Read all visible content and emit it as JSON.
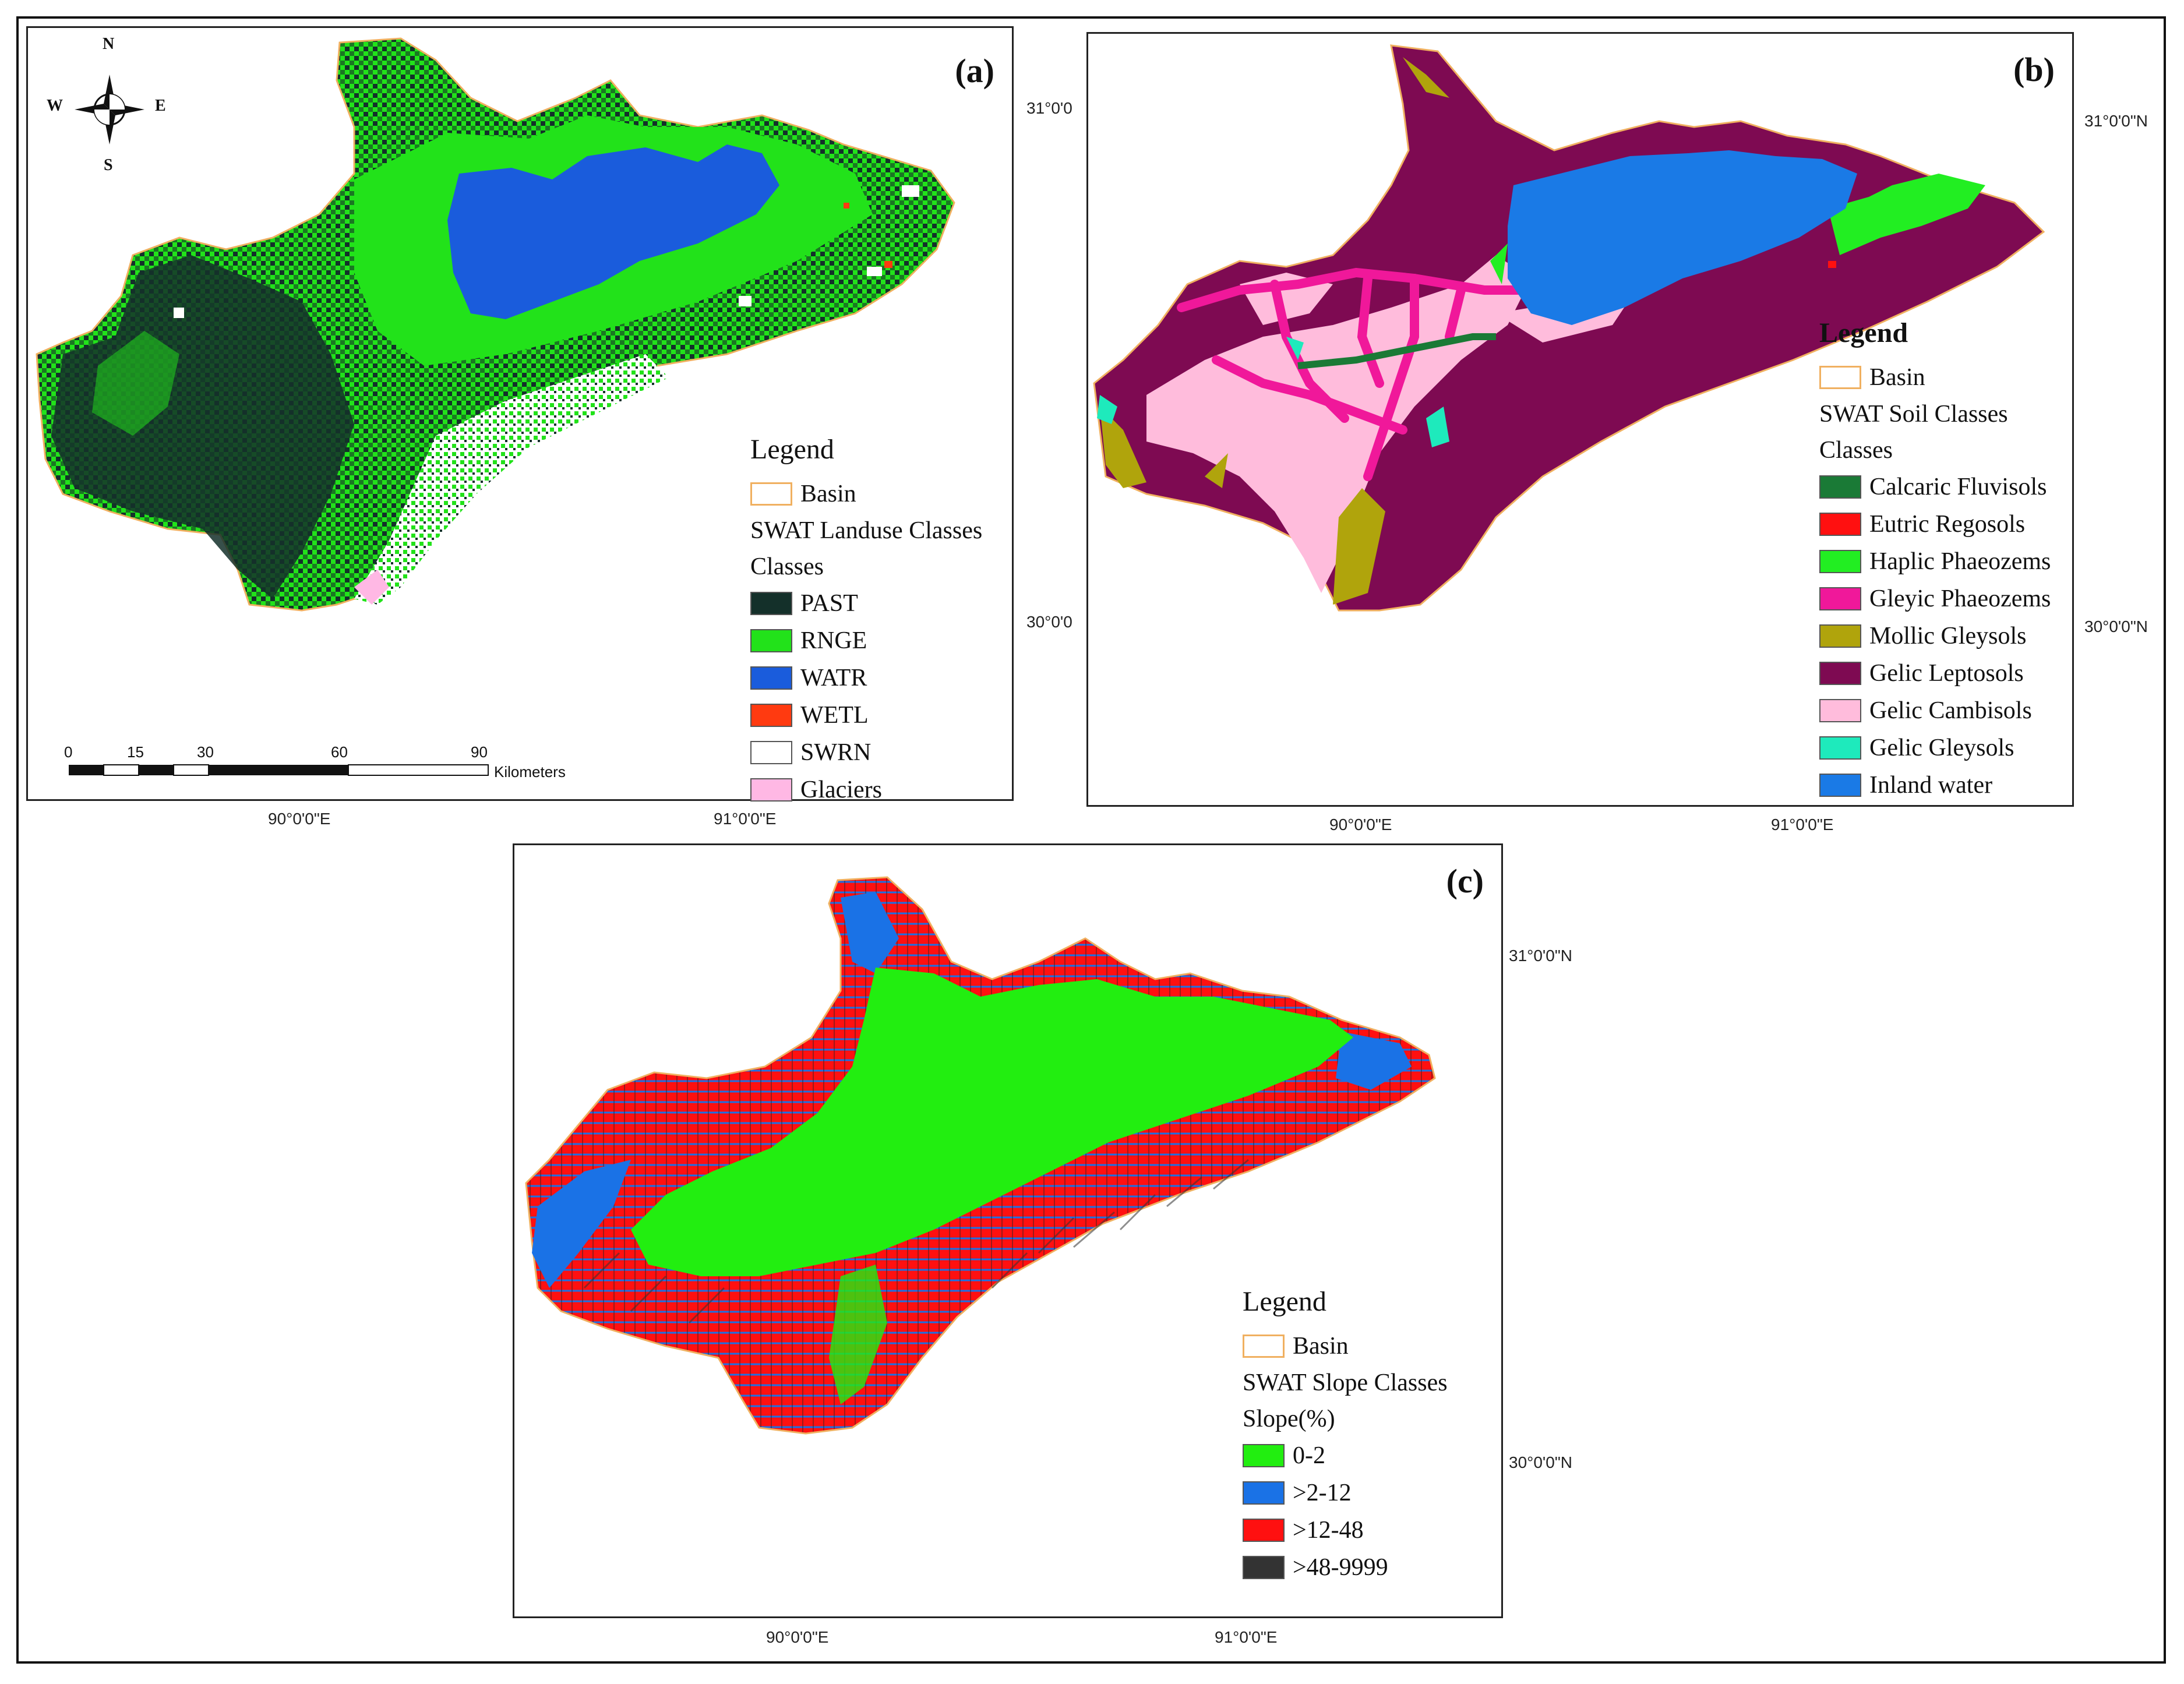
{
  "panels": [
    {
      "id": "a",
      "label": "(a)",
      "legend_title": "Legend",
      "basin_label": "Basin",
      "class_title": "SWAT Landuse Classes",
      "class_subtitle": "Classes",
      "items": [
        {
          "label": "PAST",
          "color": "#14302a"
        },
        {
          "label": "RNGE",
          "color": "#22e21a"
        },
        {
          "label": "WATR",
          "color": "#1a5cdc"
        },
        {
          "label": "WETL",
          "color": "#ff3a10"
        },
        {
          "label": "SWRN",
          "color": "#ffffff"
        },
        {
          "label": "Glaciers",
          "color": "#ffb8e4"
        }
      ],
      "lat_labels": [
        "31°0'0",
        "30°0'0"
      ],
      "lon_labels": [
        "90°0'0\"E",
        "91°0'0\"E"
      ]
    },
    {
      "id": "b",
      "label": "(b)",
      "legend_title": "Legend",
      "basin_label": "Basin",
      "class_title": "SWAT Soil Classes",
      "class_subtitle": "Classes",
      "items": [
        {
          "label": "Calcaric Fluvisols",
          "color": "#1a7a36"
        },
        {
          "label": "Eutric Regosols",
          "color": "#ff1010"
        },
        {
          "label": "Haplic Phaeozems",
          "color": "#22ee22"
        },
        {
          "label": "Gleyic Phaeozems",
          "color": "#f0189a"
        },
        {
          "label": "Mollic Gleysols",
          "color": "#b0a40c"
        },
        {
          "label": "Gelic Leptosols",
          "color": "#7e0a52"
        },
        {
          "label": "Gelic Cambisols",
          "color": "#ffbcdc"
        },
        {
          "label": "Gelic Gleysols",
          "color": "#1eeabc"
        },
        {
          "label": "Inland water",
          "color": "#1a7ae6"
        }
      ],
      "lat_labels": [
        "31°0'0\"N",
        "30°0'0\"N"
      ],
      "lon_labels": [
        "90°0'0\"E",
        "91°0'0\"E"
      ]
    },
    {
      "id": "c",
      "label": "(c)",
      "legend_title": "Legend",
      "basin_label": "Basin",
      "class_title": "SWAT Slope Classes",
      "class_subtitle": "Slope(%)",
      "items": [
        {
          "label": "0-2",
          "color": "#22ee10"
        },
        {
          "label": ">2-12",
          "color": "#1a72e6"
        },
        {
          "label": ">12-48",
          "color": "#ff1010"
        },
        {
          "label": ">48-9999",
          "color": "#333333"
        }
      ],
      "lat_labels": [
        "31°0'0\"N",
        "30°0'0\"N"
      ],
      "lon_labels": [
        "90°0'0\"E",
        "91°0'0\"E"
      ]
    }
  ],
  "compass": {
    "n": "N",
    "s": "S",
    "e": "E",
    "w": "W"
  },
  "scalebar": {
    "ticks": [
      "0",
      "15",
      "30",
      "60",
      "90"
    ],
    "unit": "Kilometers"
  },
  "basin_outline_color": "#f0b060"
}
